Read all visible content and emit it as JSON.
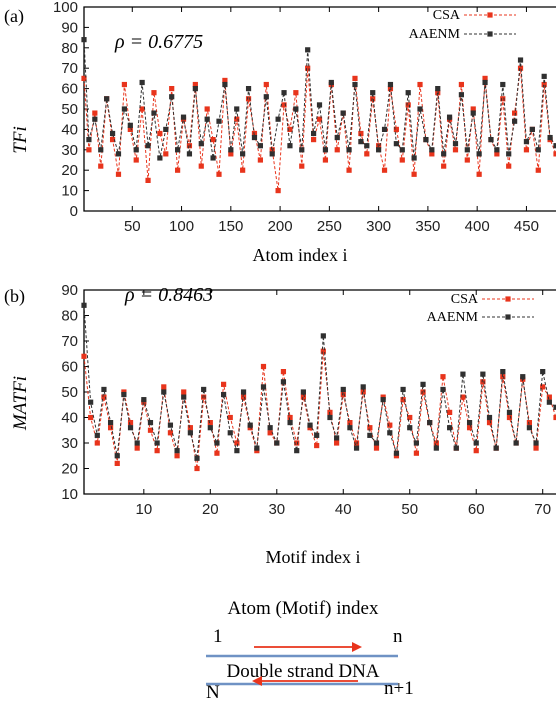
{
  "chart_data": [
    {
      "type": "line",
      "panel_label": "(a)",
      "annotation": "ρ = 0.6775",
      "xlabel": "Atom index i",
      "ylabel": "TFi",
      "ylim": [
        0,
        100
      ],
      "xlim": [
        1,
        480
      ],
      "yticks": [
        0,
        10,
        20,
        30,
        40,
        50,
        60,
        70,
        80,
        90,
        100
      ],
      "xticks": [
        50,
        100,
        150,
        200,
        250,
        300,
        350,
        400,
        450
      ],
      "legend_position": "top-right",
      "series": [
        {
          "name": "CSA",
          "color": "#e8341c",
          "x": [
            1,
            6,
            12,
            18,
            24,
            30,
            36,
            42,
            48,
            54,
            60,
            66,
            72,
            78,
            84,
            90,
            96,
            102,
            108,
            114,
            120,
            126,
            132,
            138,
            144,
            150,
            156,
            162,
            168,
            174,
            180,
            186,
            192,
            198,
            204,
            210,
            216,
            222,
            228,
            234,
            240,
            246,
            252,
            258,
            264,
            270,
            276,
            282,
            288,
            294,
            300,
            306,
            312,
            318,
            324,
            330,
            336,
            342,
            348,
            354,
            360,
            366,
            372,
            378,
            384,
            390,
            396,
            402,
            408,
            414,
            420,
            426,
            432,
            438,
            444,
            450,
            456,
            462,
            468,
            474,
            480
          ],
          "values": [
            65,
            30,
            48,
            22,
            55,
            35,
            18,
            62,
            40,
            25,
            50,
            15,
            58,
            38,
            28,
            60,
            20,
            45,
            32,
            62,
            22,
            50,
            35,
            18,
            64,
            28,
            45,
            20,
            55,
            38,
            25,
            62,
            30,
            10,
            52,
            40,
            58,
            22,
            70,
            35,
            45,
            25,
            62,
            30,
            48,
            20,
            65,
            38,
            28,
            55,
            32,
            20,
            60,
            40,
            25,
            52,
            18,
            62,
            35,
            28,
            58,
            22,
            45,
            30,
            62,
            25,
            50,
            18,
            65,
            35,
            28,
            55,
            22,
            48,
            70,
            30,
            40,
            20,
            62,
            35,
            28
          ]
        },
        {
          "name": "AAENM",
          "color": "#303030",
          "x": [
            1,
            6,
            12,
            18,
            24,
            30,
            36,
            42,
            48,
            54,
            60,
            66,
            72,
            78,
            84,
            90,
            96,
            102,
            108,
            114,
            120,
            126,
            132,
            138,
            144,
            150,
            156,
            162,
            168,
            174,
            180,
            186,
            192,
            198,
            204,
            210,
            216,
            222,
            228,
            234,
            240,
            246,
            252,
            258,
            264,
            270,
            276,
            282,
            288,
            294,
            300,
            306,
            312,
            318,
            324,
            330,
            336,
            342,
            348,
            354,
            360,
            366,
            372,
            378,
            384,
            390,
            396,
            402,
            408,
            414,
            420,
            426,
            432,
            438,
            444,
            450,
            456,
            462,
            468,
            474,
            480
          ],
          "values": [
            84,
            35,
            45,
            30,
            55,
            38,
            28,
            50,
            42,
            30,
            63,
            32,
            48,
            26,
            40,
            56,
            30,
            46,
            28,
            60,
            33,
            45,
            26,
            44,
            62,
            30,
            50,
            28,
            60,
            36,
            32,
            56,
            28,
            45,
            58,
            32,
            50,
            30,
            79,
            38,
            52,
            30,
            63,
            36,
            48,
            30,
            62,
            34,
            32,
            58,
            30,
            40,
            62,
            33,
            30,
            58,
            26,
            50,
            35,
            30,
            60,
            28,
            46,
            33,
            57,
            30,
            48,
            28,
            63,
            35,
            30,
            62,
            28,
            44,
            74,
            34,
            40,
            30,
            66,
            36,
            32
          ]
        }
      ]
    },
    {
      "type": "line",
      "panel_label": "(b)",
      "annotation": "ρ = 0.8463",
      "xlabel": "Motif index i",
      "ylabel": "MATFi",
      "ylim": [
        10,
        90
      ],
      "xlim": [
        1,
        72
      ],
      "yticks": [
        10,
        20,
        30,
        40,
        50,
        60,
        70,
        80,
        90
      ],
      "xticks": [
        10,
        20,
        30,
        40,
        50,
        60,
        70
      ],
      "legend_position": "top-right",
      "series": [
        {
          "name": "CSA",
          "color": "#e8341c",
          "x": [
            1,
            2,
            3,
            4,
            5,
            6,
            7,
            8,
            9,
            10,
            11,
            12,
            13,
            14,
            15,
            16,
            17,
            18,
            19,
            20,
            21,
            22,
            23,
            24,
            25,
            26,
            27,
            28,
            29,
            30,
            31,
            32,
            33,
            34,
            35,
            36,
            37,
            38,
            39,
            40,
            41,
            42,
            43,
            44,
            45,
            46,
            47,
            48,
            49,
            50,
            51,
            52,
            53,
            54,
            55,
            56,
            57,
            58,
            59,
            60,
            61,
            62,
            63,
            64,
            65,
            66,
            67,
            68,
            69,
            70,
            71,
            72
          ],
          "values": [
            64,
            40,
            30,
            48,
            36,
            22,
            50,
            38,
            28,
            46,
            35,
            27,
            52,
            34,
            25,
            50,
            36,
            20,
            48,
            38,
            26,
            53,
            40,
            30,
            48,
            36,
            27,
            60,
            34,
            30,
            58,
            40,
            30,
            48,
            36,
            29,
            66,
            42,
            30,
            49,
            38,
            30,
            50,
            36,
            28,
            48,
            37,
            25,
            47,
            40,
            26,
            50,
            38,
            30,
            56,
            42,
            28,
            48,
            36,
            27,
            54,
            38,
            28,
            56,
            40,
            30,
            55,
            38,
            28,
            52,
            48,
            40
          ]
        },
        {
          "name": "AAENM",
          "color": "#303030",
          "x": [
            1,
            2,
            3,
            4,
            5,
            6,
            7,
            8,
            9,
            10,
            11,
            12,
            13,
            14,
            15,
            16,
            17,
            18,
            19,
            20,
            21,
            22,
            23,
            24,
            25,
            26,
            27,
            28,
            29,
            30,
            31,
            32,
            33,
            34,
            35,
            36,
            37,
            38,
            39,
            40,
            41,
            42,
            43,
            44,
            45,
            46,
            47,
            48,
            49,
            50,
            51,
            52,
            53,
            54,
            55,
            56,
            57,
            58,
            59,
            60,
            61,
            62,
            63,
            64,
            65,
            66,
            67,
            68,
            69,
            70,
            71,
            72
          ],
          "values": [
            84,
            46,
            33,
            51,
            38,
            25,
            49,
            36,
            30,
            47,
            38,
            30,
            50,
            37,
            27,
            48,
            34,
            24,
            51,
            36,
            30,
            49,
            34,
            27,
            50,
            37,
            28,
            52,
            36,
            30,
            54,
            38,
            27,
            50,
            37,
            33,
            72,
            40,
            32,
            51,
            36,
            28,
            52,
            33,
            30,
            47,
            34,
            26,
            51,
            36,
            30,
            53,
            38,
            28,
            51,
            36,
            28,
            57,
            38,
            30,
            57,
            40,
            28,
            58,
            42,
            30,
            56,
            36,
            30,
            58,
            46,
            44
          ]
        }
      ]
    }
  ],
  "schematic": {
    "title": "Atom (Motif) index",
    "top_left": "1",
    "top_right": "n",
    "middle": "Double strand DNA",
    "bottom_left": "N",
    "bottom_right": "n+1",
    "line_color": "#6f92c4",
    "arrow_color": "#e8341c"
  }
}
